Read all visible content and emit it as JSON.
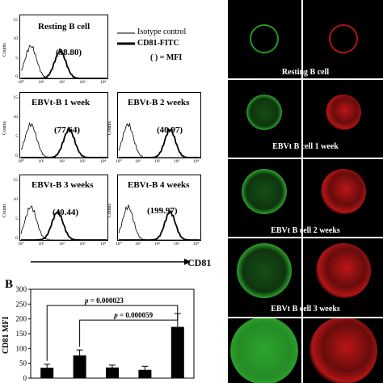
{
  "legend": {
    "isotype": "Isotype control",
    "cd81": "CD81-FITC",
    "mfi_note": "( ) = MFI"
  },
  "histograms": [
    {
      "title": "Resting B cell",
      "mfi": "(38.80)"
    },
    {
      "title": "EBVt-B 1 week",
      "mfi": "(77.64)"
    },
    {
      "title": "EBVt-B 2 weeks",
      "mfi": "(40.97)"
    },
    {
      "title": "EBVt-B 3 weeks",
      "mfi": "(40.44)"
    },
    {
      "title": "EBVt-B 4 weeks",
      "mfi": "(199.97)"
    }
  ],
  "hist_axis": {
    "ylabel": "Counts",
    "yticks": [
      "0",
      "5",
      "10",
      "15"
    ],
    "xticks": [
      "10⁰",
      "10¹",
      "10²",
      "10³",
      "10⁴"
    ]
  },
  "x_marker": "CD81",
  "panel_b_label": "B",
  "chart_data": {
    "type": "bar",
    "categories": [
      "",
      "",
      "",
      "",
      ""
    ],
    "values": [
      35,
      77,
      36,
      28,
      173
    ],
    "errors": [
      12,
      18,
      8,
      12,
      45
    ],
    "ylabel": "CD81 MFI",
    "yticks": [
      0,
      50,
      100,
      150,
      200,
      250,
      300
    ],
    "ylim": [
      0,
      300
    ],
    "annotations": [
      {
        "text_p": "p",
        "text_val": " = 0.000023",
        "from": 0,
        "to": 4
      },
      {
        "text_p": "p",
        "text_val": " = 0.000059",
        "from": 1,
        "to": 4
      }
    ]
  },
  "micrographs": [
    {
      "caption": "Resting  B cell"
    },
    {
      "caption": "EBVt B cell 1 week"
    },
    {
      "caption": "EBVt B cell 2 weeks"
    },
    {
      "caption": "EBVt B cell 3 weeks"
    },
    {
      "caption": ""
    }
  ],
  "colors": {
    "green": "#2fae2f",
    "red": "#d01818",
    "background": "#000000"
  }
}
